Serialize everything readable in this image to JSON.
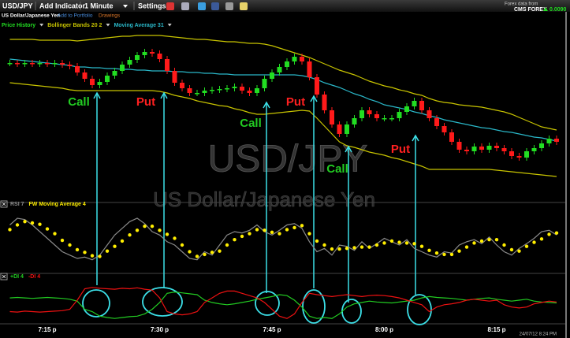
{
  "toolbar": {
    "symbol": "USD/JPY",
    "add_indicator": "Add Indicator",
    "interval": "1 Minute",
    "settings": "Settings",
    "provider_label": "Forex data from",
    "provider": "CMS FOREX",
    "change": "0.0090"
  },
  "subheader": {
    "name": "US Dollar/Japanese Yen",
    "add_to_portfolio": "Add to Portfolio",
    "drawings": "Drawings"
  },
  "timestamp": "24/07/12 8:24 PM",
  "chart_data": [
    {
      "type": "candlestick",
      "price_name": "Price History",
      "up_color": "#22dd22",
      "down_color": "#ff1a1a",
      "watermark": "USD/JPY",
      "watermark_subtitle": "US Dollar/Japanese Yen",
      "ylim": [
        0,
        215
      ],
      "open": [
        175,
        175,
        174,
        175,
        174,
        175,
        174,
        175,
        173,
        171,
        163,
        155,
        147,
        151,
        159,
        165,
        173,
        179,
        185,
        189,
        187,
        180,
        165,
        150,
        143,
        137,
        137,
        140,
        141,
        142,
        143,
        145,
        140,
        137,
        143,
        155,
        163,
        170,
        177,
        183,
        177,
        157,
        135,
        115,
        97,
        85,
        97,
        105,
        115,
        110,
        105,
        105,
        105,
        113,
        120,
        127,
        115,
        105,
        95,
        87,
        75,
        65,
        63,
        69,
        65,
        70,
        67,
        63,
        57,
        55,
        63,
        67,
        73,
        79
      ],
      "high": [
        179,
        179,
        179,
        179,
        179,
        179,
        179,
        179,
        177,
        175,
        167,
        159,
        155,
        163,
        169,
        177,
        183,
        189,
        193,
        193,
        191,
        184,
        169,
        154,
        147,
        141,
        144,
        145,
        146,
        147,
        149,
        149,
        144,
        147,
        159,
        167,
        174,
        181,
        187,
        187,
        181,
        161,
        139,
        119,
        101,
        101,
        109,
        119,
        119,
        114,
        109,
        109,
        117,
        124,
        131,
        131,
        119,
        109,
        99,
        91,
        79,
        69,
        73,
        73,
        74,
        74,
        71,
        67,
        61,
        67,
        71,
        77,
        83,
        83
      ],
      "low": [
        171,
        170,
        170,
        170,
        170,
        170,
        170,
        169,
        167,
        159,
        151,
        143,
        143,
        147,
        155,
        161,
        169,
        175,
        181,
        183,
        176,
        161,
        146,
        139,
        133,
        133,
        133,
        136,
        137,
        138,
        139,
        136,
        133,
        133,
        139,
        151,
        159,
        166,
        173,
        173,
        153,
        131,
        111,
        93,
        81,
        81,
        93,
        101,
        106,
        101,
        101,
        101,
        101,
        109,
        116,
        111,
        101,
        91,
        83,
        71,
        61,
        59,
        59,
        61,
        61,
        63,
        59,
        53,
        51,
        51,
        59,
        63,
        69,
        71
      ],
      "close": [
        175,
        174,
        175,
        174,
        175,
        174,
        175,
        173,
        171,
        163,
        155,
        147,
        151,
        159,
        165,
        173,
        179,
        185,
        189,
        187,
        180,
        165,
        150,
        143,
        137,
        137,
        140,
        141,
        142,
        143,
        145,
        140,
        137,
        143,
        155,
        163,
        170,
        177,
        183,
        177,
        157,
        135,
        115,
        97,
        85,
        97,
        105,
        115,
        110,
        105,
        105,
        105,
        113,
        120,
        127,
        115,
        105,
        95,
        87,
        75,
        65,
        63,
        69,
        65,
        70,
        67,
        63,
        57,
        55,
        63,
        67,
        73,
        79,
        75
      ],
      "series": [
        {
          "name": "Bollinger Bands 20 2",
          "color": "#c8c400",
          "values": [
            205,
            205,
            205,
            205,
            204,
            204,
            204,
            204,
            204,
            203,
            204,
            205,
            206,
            207,
            208,
            209,
            209,
            210,
            210,
            210,
            210,
            209,
            208,
            207,
            206,
            205,
            205,
            204,
            203,
            202,
            202,
            201,
            200,
            200,
            199,
            197,
            194,
            191,
            188,
            185,
            182,
            178,
            174,
            170,
            166,
            163,
            160,
            156,
            152,
            149,
            146,
            144,
            141,
            139,
            136,
            134,
            130,
            127,
            125,
            124,
            122,
            121,
            120,
            119,
            117,
            115,
            113,
            110,
            106,
            102,
            98,
            94,
            92,
            90
          ],
          "lower": [
            150,
            149,
            148,
            147,
            146,
            145,
            144,
            143,
            141,
            140,
            140,
            140,
            140,
            140,
            140,
            140,
            140,
            140,
            140,
            140,
            139,
            137,
            134,
            132,
            130,
            127,
            125,
            123,
            121,
            120,
            117,
            115,
            112,
            110,
            110,
            111,
            112,
            113,
            114,
            115,
            114,
            105,
            95,
            85,
            75,
            70,
            68,
            65,
            62,
            60,
            58,
            55,
            53,
            50,
            47,
            44,
            40,
            40,
            40,
            40,
            40,
            40,
            40,
            40,
            40,
            39,
            38,
            37,
            36,
            35,
            34,
            33,
            32,
            31
          ]
        },
        {
          "name": "Moving Average 31",
          "color": "#2ab7c8",
          "values": [
            180,
            179,
            178,
            177,
            176,
            175,
            174,
            173,
            172,
            170,
            170,
            169,
            169,
            168,
            168,
            167,
            167,
            166,
            166,
            165,
            165,
            165,
            164,
            164,
            163,
            163,
            162,
            162,
            161,
            161,
            160,
            160,
            160,
            160,
            160,
            160,
            160,
            160,
            160,
            159,
            157,
            154,
            150,
            147,
            144,
            140,
            136,
            133,
            129,
            126,
            122,
            120,
            118,
            116,
            113,
            111,
            108,
            106,
            103,
            101,
            99,
            97,
            95,
            93,
            92,
            90,
            88,
            87,
            85,
            83,
            81,
            80,
            78,
            76
          ]
        }
      ],
      "annotations": [
        {
          "text": "Call",
          "color": "#22cc22"
        },
        {
          "text": "Put",
          "color": "#ff2020"
        },
        {
          "text": "Call",
          "color": "#22cc22"
        },
        {
          "text": "Put",
          "color": "#ff2020"
        },
        {
          "text": "Call",
          "color": "#22cc22"
        },
        {
          "text": "Put",
          "color": "#ff2020"
        }
      ]
    },
    {
      "type": "line",
      "ylim": [
        0,
        100
      ],
      "series": [
        {
          "name": "RSI 7",
          "color": "#8a8a8a",
          "values": [
            70,
            80,
            78,
            70,
            60,
            50,
            40,
            30,
            25,
            20,
            22,
            18,
            25,
            40,
            55,
            65,
            75,
            80,
            72,
            60,
            55,
            45,
            40,
            30,
            20,
            18,
            30,
            25,
            40,
            55,
            60,
            58,
            62,
            70,
            60,
            55,
            62,
            70,
            72,
            65,
            45,
            30,
            35,
            25,
            40,
            38,
            32,
            45,
            35,
            42,
            50,
            45,
            40,
            48,
            35,
            30,
            25,
            22,
            30,
            28,
            40,
            45,
            48,
            42,
            52,
            40,
            30,
            25,
            35,
            42,
            50,
            60,
            62,
            55
          ]
        },
        {
          "name": "FW Moving Average 4",
          "color": "#ffee00",
          "style": "dots",
          "values": [
            63,
            70,
            75,
            73,
            71,
            64,
            57,
            47,
            40,
            33,
            29,
            24,
            23,
            31,
            38,
            46,
            55,
            62,
            68,
            68,
            62,
            56,
            50,
            40,
            30,
            23,
            26,
            29,
            31,
            40,
            48,
            53,
            57,
            63,
            62,
            59,
            57,
            63,
            66,
            69,
            57,
            46,
            40,
            34,
            34,
            35,
            36,
            37,
            37,
            40,
            43,
            46,
            44,
            43,
            42,
            38,
            32,
            28,
            26,
            26,
            31,
            37,
            43,
            46,
            48,
            48,
            40,
            33,
            31,
            38,
            44,
            49,
            56,
            58
          ]
        }
      ]
    },
    {
      "type": "line",
      "ylim": [
        0,
        100
      ],
      "categories": [
        null,
        null,
        null,
        null,
        null,
        "7:15 p",
        null,
        null,
        null,
        null,
        null,
        null,
        null,
        null,
        null,
        null,
        null,
        null,
        null,
        null,
        "7:30 p",
        null,
        null,
        null,
        null,
        null,
        null,
        null,
        null,
        null,
        null,
        null,
        null,
        null,
        null,
        "7:45 p",
        null,
        null,
        null,
        null,
        null,
        null,
        null,
        null,
        null,
        null,
        null,
        null,
        null,
        null,
        "8:00 p",
        null,
        null,
        null,
        null,
        null,
        null,
        null,
        null,
        null,
        null,
        null,
        null,
        null,
        null,
        "8:15 p",
        null,
        null,
        null,
        null,
        null,
        null,
        null,
        null
      ],
      "series": [
        {
          "name": "+DI 4",
          "color": "#22cc22",
          "values": [
            55,
            56,
            55,
            54,
            55,
            56,
            55,
            54,
            52,
            48,
            30,
            25,
            15,
            12,
            10,
            12,
            14,
            15,
            20,
            30,
            45,
            65,
            68,
            66,
            64,
            62,
            50,
            45,
            42,
            40,
            42,
            45,
            48,
            52,
            55,
            58,
            62,
            60,
            50,
            35,
            15,
            10,
            12,
            10,
            20,
            35,
            42,
            45,
            48,
            46,
            45,
            44,
            46,
            48,
            50,
            55,
            58,
            56,
            55,
            54,
            52,
            50,
            52,
            54,
            55,
            52,
            50,
            48,
            50,
            52,
            48,
            46,
            45,
            44
          ]
        },
        {
          "name": "-DI 4",
          "color": "#ee1111",
          "values": [
            25,
            24,
            26,
            25,
            24,
            25,
            26,
            27,
            30,
            50,
            75,
            78,
            76,
            75,
            74,
            76,
            75,
            77,
            74,
            72,
            55,
            25,
            20,
            18,
            20,
            25,
            45,
            55,
            65,
            70,
            70,
            65,
            60,
            55,
            45,
            30,
            15,
            10,
            20,
            45,
            65,
            62,
            60,
            58,
            60,
            62,
            60,
            58,
            60,
            61,
            60,
            58,
            55,
            50,
            45,
            40,
            25,
            35,
            40,
            42,
            45,
            50,
            52,
            50,
            48,
            50,
            40,
            35,
            33,
            35,
            42,
            45,
            48,
            46
          ]
        }
      ]
    }
  ]
}
